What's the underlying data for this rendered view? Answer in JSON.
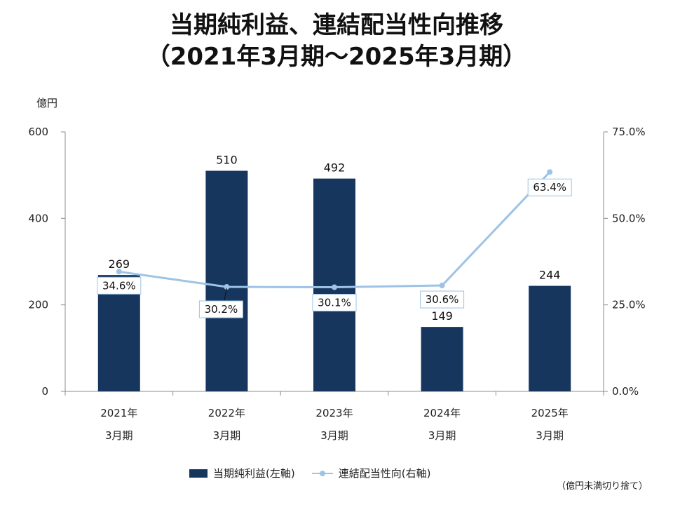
{
  "chart_data": {
    "type": "bar+line",
    "title_line1": "当期純利益、連結配当性向推移",
    "title_line2": "（2021年3月期～2025年3月期）",
    "y_unit": "億円",
    "categories": [
      {
        "year": "2021年",
        "period": "3月期"
      },
      {
        "year": "2022年",
        "period": "3月期"
      },
      {
        "year": "2023年",
        "period": "3月期"
      },
      {
        "year": "2024年",
        "period": "3月期"
      },
      {
        "year": "2025年",
        "period": "3月期"
      }
    ],
    "left_axis": {
      "min": 0,
      "max": 600,
      "ticks": [
        "0",
        "200",
        "400",
        "600"
      ]
    },
    "right_axis": {
      "min": 0,
      "max": 75,
      "ticks": [
        "0.0%",
        "25.0%",
        "50.0%",
        "75.0%"
      ]
    },
    "series": [
      {
        "name": "当期純利益(左軸)",
        "kind": "bar",
        "axis": "left",
        "color": "#17365d",
        "values": [
          269,
          510,
          492,
          149,
          244
        ],
        "labels": [
          "269",
          "510",
          "492",
          "149",
          "244"
        ]
      },
      {
        "name": "連結配当性向(右軸)",
        "kind": "line",
        "axis": "right",
        "color": "#9dc3e6",
        "values": [
          34.6,
          30.2,
          30.1,
          30.6,
          63.4
        ],
        "labels": [
          "34.6%",
          "30.2%",
          "30.1%",
          "30.6%",
          "63.4%"
        ]
      }
    ],
    "legend": "bottom",
    "grid": false,
    "footnote": "（億円未満切り捨て）"
  }
}
